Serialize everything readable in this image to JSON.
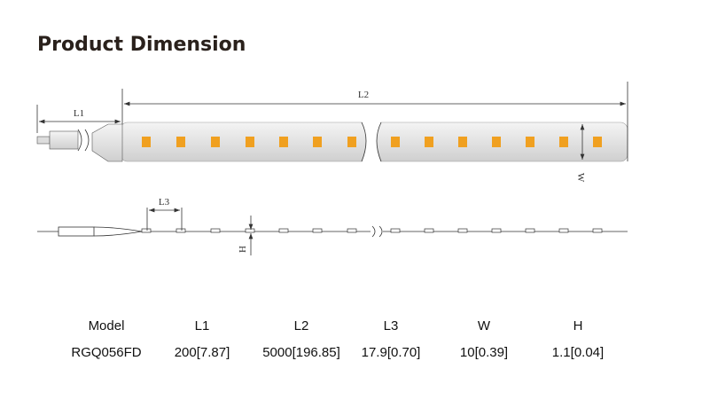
{
  "header": {
    "title": "Product Dimension"
  },
  "diagram": {
    "labels": {
      "l1": "L1",
      "l2": "L2",
      "l3": "L3",
      "w": "W",
      "h": "H"
    }
  },
  "table": {
    "headers": [
      "Model",
      "L1",
      "L2",
      "L3",
      "W",
      "H"
    ],
    "rows": [
      [
        "RGQ056FD",
        "200[7.87]",
        "5000[196.85]",
        "17.9[0.70]",
        "10[0.39]",
        "1.1[0.04]"
      ]
    ]
  }
}
